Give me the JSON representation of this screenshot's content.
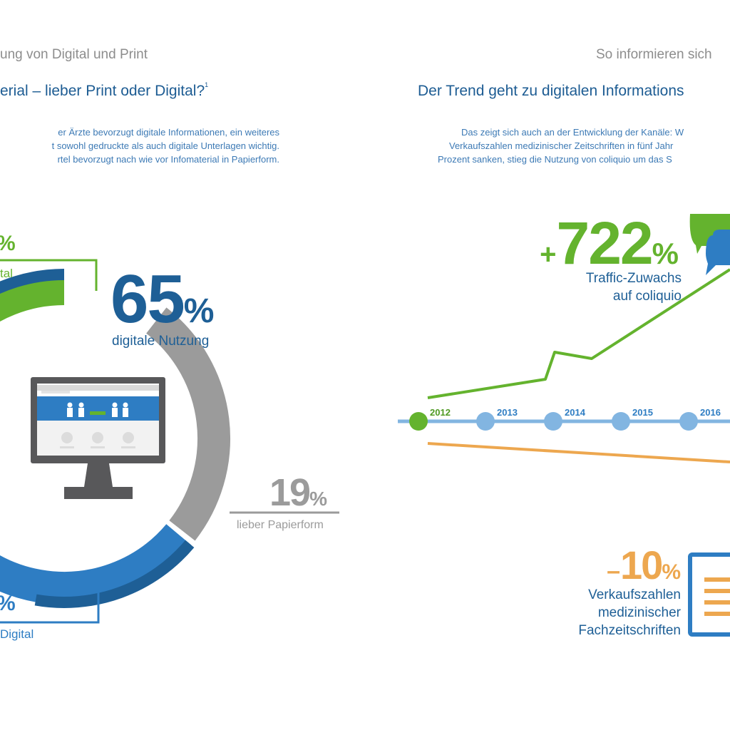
{
  "left_panel": {
    "header": "ung von Digital und Print",
    "title": "erial – lieber Print oder Digital?",
    "footnote": "1",
    "intro": [
      "er Ärzte bevorzugt digitale Informationen, ein weiteres",
      "t sowohl gedruckte als auch digitale Unterlagen wichtig.",
      "rtel bevorzugt nach wie vor Infomaterial in Papierform."
    ],
    "top_callout": {
      "value": "%",
      "label": "tal"
    },
    "main_stat": {
      "value": "65",
      "unit": "%",
      "label": "digitale Nutzung"
    },
    "print_stat": {
      "value": "19",
      "unit": "%",
      "label": "lieber Papierform"
    },
    "bottom_callout": {
      "value": "%",
      "label": "Digital"
    }
  },
  "right_panel": {
    "header": "So informieren sich",
    "title": "Der Trend geht zu digitalen Informations",
    "intro": [
      "Das zeigt sich auch an der Entwicklung der Kanäle: W",
      "Verkaufszahlen medizinischer Zeitschriften in fünf Jahr",
      "Prozent sanken, stieg die Nutzung von coliquio um das S"
    ],
    "traffic_stat": {
      "sign": "+",
      "value": "722",
      "unit": "%",
      "label_lines": [
        "Traffic-Zuwachs",
        "auf coliquio"
      ]
    },
    "sales_stat": {
      "sign": "–",
      "value": "10",
      "unit": "%",
      "label_lines": [
        "Verkaufszahlen",
        "medizinischer",
        "Fachzeitschriften"
      ]
    }
  },
  "colors": {
    "green": "#64b32e",
    "blue": "#2e7dc3",
    "dark_blue": "#1e5f96",
    "gray": "#9b9b9b",
    "light_blue": "#82b5e1",
    "orange": "#eda74f"
  },
  "chart_data": [
    {
      "type": "pie",
      "title": "",
      "segments": [
        {
          "name": "digitale Nutzung",
          "value": 65,
          "color": "#1e5f96"
        },
        {
          "name": "lieber Papierform",
          "value": 19,
          "color": "#9b9b9b"
        }
      ]
    },
    {
      "type": "line",
      "title": "",
      "x": [
        "2012",
        "2013",
        "2014",
        "2015",
        "2016"
      ],
      "series": [
        {
          "name": "Traffic-Zuwachs auf coliquio",
          "color": "#64b32e",
          "total_change": "+722%"
        },
        {
          "name": "Verkaufszahlen medizinischer Fachzeitschriften",
          "color": "#eda74f",
          "total_change": "-10%"
        }
      ],
      "grid": false
    }
  ]
}
